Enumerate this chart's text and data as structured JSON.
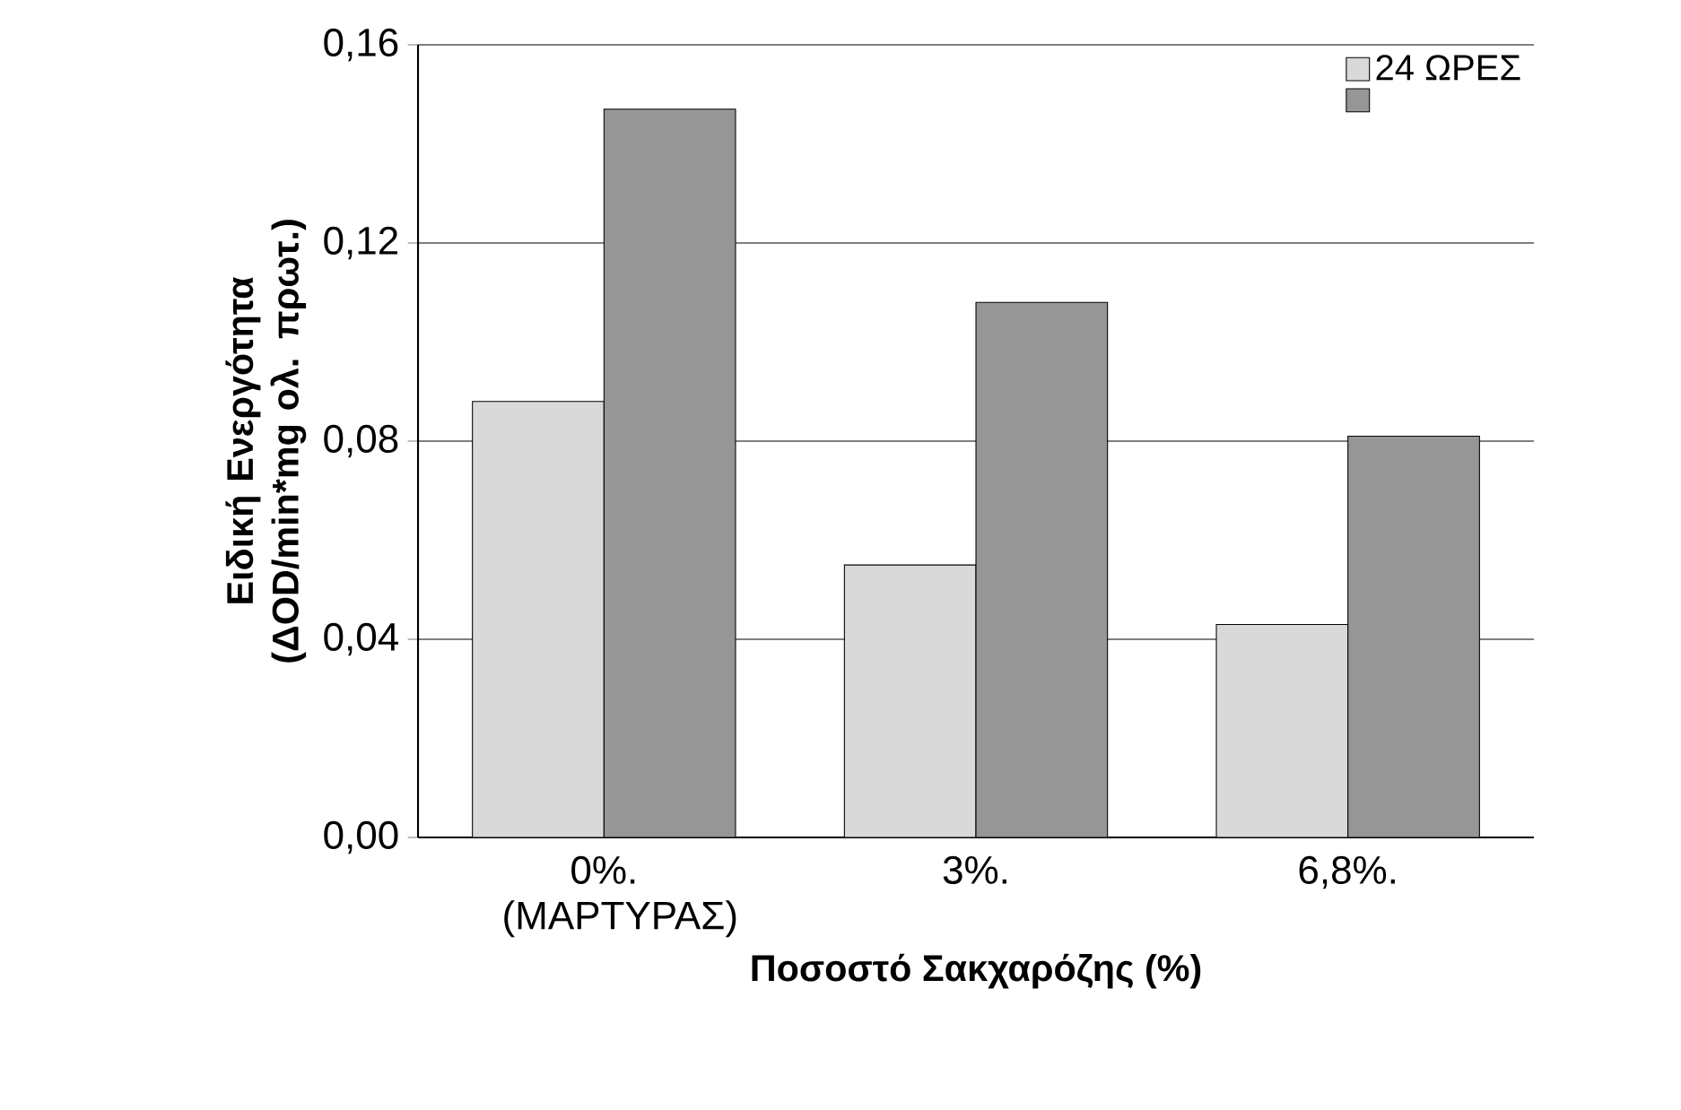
{
  "chart_data": {
    "type": "bar",
    "xlabel": "Ποσοστό Σακχαρόζης (%)",
    "ylabel": "Ειδική Ενεργότητα (ΔOD/min*mg ολ. πρωτ.)",
    "categories": [
      "0%. (ΜΑΡΤΥΡΑΣ)",
      "3%.",
      "6,8%."
    ],
    "series": [
      {
        "name": "24 ΩΡΕΣ",
        "color": "#d9d9d9",
        "values": [
          0.088,
          0.055,
          0.043
        ]
      },
      {
        "color": "#969696",
        "values": [
          0.147,
          0.108,
          0.081
        ]
      }
    ],
    "ylim": [
      0,
      0.16
    ],
    "yticks": [
      {
        "value": 0,
        "label": "0,00"
      },
      {
        "value": 0.04,
        "label": "0,04"
      },
      {
        "value": 0.08,
        "label": "0,08"
      },
      {
        "value": 0.12,
        "label": "0,12"
      },
      {
        "value": 0.16,
        "label": "0,16"
      }
    ],
    "grid": "y",
    "legend": "top right"
  }
}
